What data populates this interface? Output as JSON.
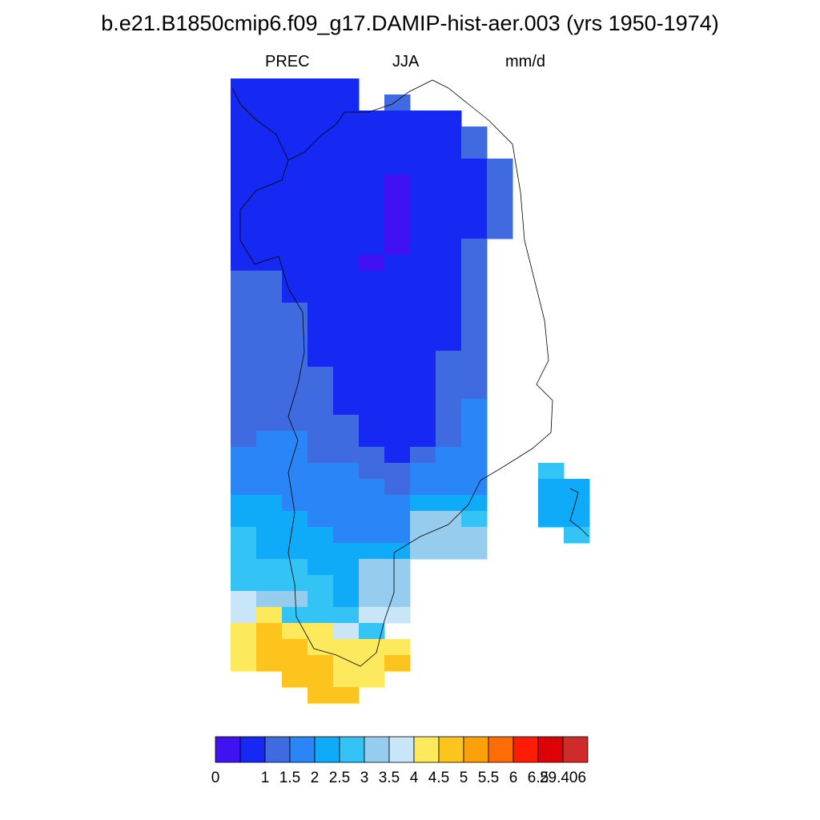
{
  "header": {
    "title": "b.e21.B1850cmip6.f09_g17.DAMIP-hist-aer.003 (yrs 1950-1974)",
    "variable": "PREC",
    "season": "JJA",
    "units": "mm/d"
  },
  "colorbar": {
    "colors": [
      "#4012f2",
      "#1529f2",
      "#3f6ae0",
      "#2a86f6",
      "#0faaf8",
      "#33c3f5",
      "#96cdee",
      "#c8e6f8",
      "#fdea5c",
      "#fdc41e",
      "#fda10a",
      "#fd6c07",
      "#fd1c06",
      "#dc0205",
      "#cf2b2b"
    ],
    "tick_labels": [
      "0",
      "1",
      "1.5",
      "2",
      "2.5",
      "3",
      "3.5",
      "4",
      "4.5",
      "5",
      "5.5",
      "6",
      "6.5",
      "29.406"
    ]
  },
  "map": {
    "region": "Greenland",
    "colors": {
      "1": "#4012f2",
      "2": "#1529f2",
      "3": "#3f6ae0",
      "4": "#2a86f6",
      "5": "#0faaf8",
      "6": "#33c3f5",
      "7": "#96cdee",
      "8": "#c8e6f8",
      "9": "#fdea5c",
      "A": "#fdc41e"
    },
    "grid": [
      "22222.........",
      "22222.3.......",
      "222222222.....",
      "2222222223....",
      "2222222223....",
      "22222222223...",
      "22222212223...",
      "22222212223...",
      "22222212223...",
      "22222212223...",
      "2222221223....",
      "2222212223....",
      "3322222223....",
      "3322222223....",
      "3332222223....",
      "3332222223....",
      "3332222223....",
      "3332222233....",
      "3333222233....",
      "3333222233....",
      "3333222234....",
      "3333322234....",
      "3443322234....",
      "4443332344....",
      "4444433444..6.",
      "4444443444..55",
      "5544444555..55",
      "5554444776..55",
      "6555444777...6",
      "6555555777....",
      "6665577.......",
      "6666577.......",
      "8776577.......",
      "8966688.......",
      "9A9986........",
      "9AA9999.......",
      "9AAA99A.......",
      "..AA99........",
      "...AA........."
    ]
  }
}
